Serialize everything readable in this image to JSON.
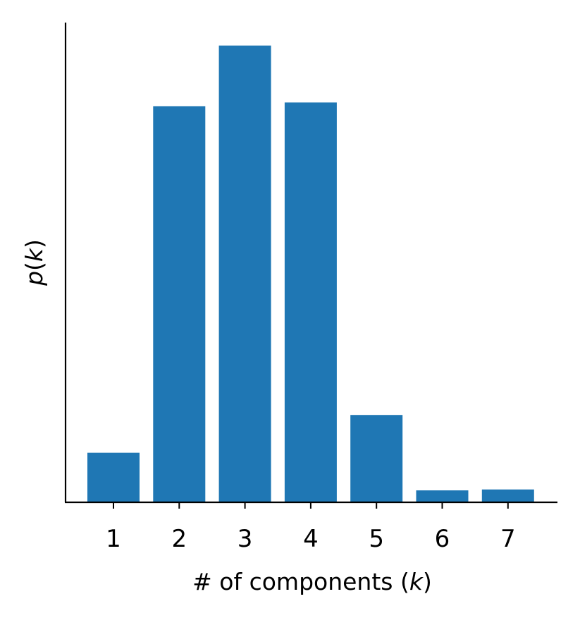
{
  "chart_data": {
    "type": "bar",
    "categories": [
      "1",
      "2",
      "3",
      "4",
      "5",
      "6",
      "7"
    ],
    "values": [
      0.054,
      0.431,
      0.497,
      0.435,
      0.095,
      0.013,
      0.014
    ],
    "title": "",
    "xlabel": "# of components (k)",
    "ylabel": "p(k)",
    "ylim": [
      0,
      0.522
    ],
    "yticks_shown": false,
    "grid": false,
    "bar_color": "#1f77b4"
  }
}
